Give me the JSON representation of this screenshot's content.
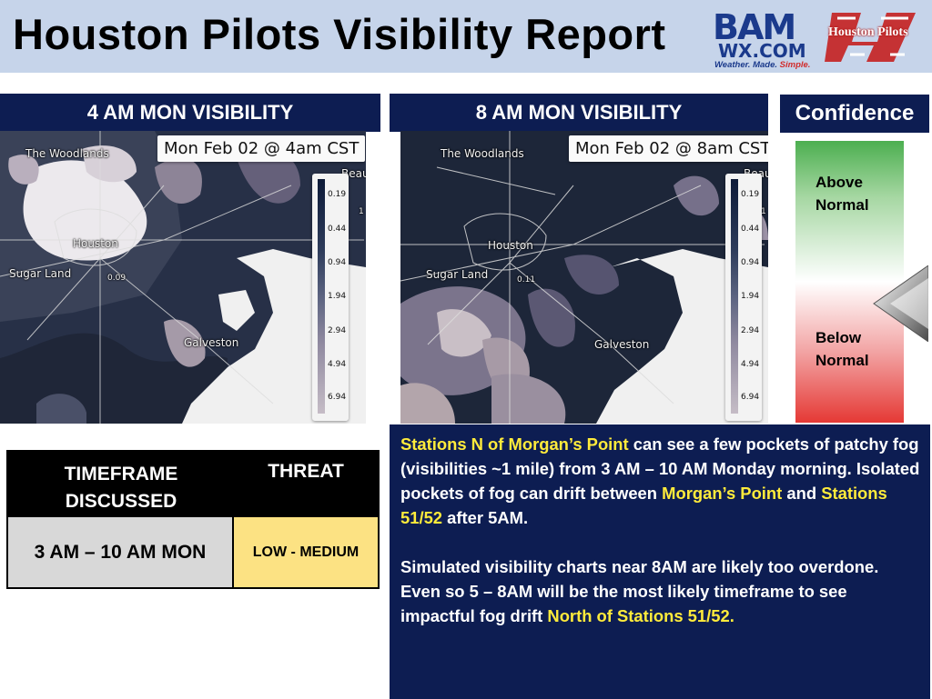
{
  "header": {
    "title": "Houston Pilots Visibility Report",
    "bam_logo": {
      "main": "BAM",
      "sub": "WX.COM",
      "tagline_a": "Weather. Made. ",
      "tagline_b": "Simple."
    },
    "hp_logo": {
      "text": "Houston Pilots"
    }
  },
  "maps": [
    {
      "title": "4 AM MON VISIBILITY",
      "timestamp": "Mon Feb 02 @ 4am CST",
      "labels": {
        "woodlands": "The Woodlands",
        "houston": "Houston",
        "sugarland": "Sugar Land",
        "galveston": "Galveston",
        "value": "0.09",
        "edge_a": "Beaumo",
        "edge_b": "1"
      }
    },
    {
      "title": "8 AM MON VISIBILITY",
      "timestamp": "Mon Feb 02 @ 8am CST",
      "labels": {
        "woodlands": "The Woodlands",
        "houston": "Houston",
        "sugarland": "Sugar Land",
        "galveston": "Galveston",
        "value": "0.11",
        "edge_a": "Beaumo",
        "edge_b": "1"
      }
    }
  ],
  "scale_values": [
    "0.19",
    "0.44",
    "0.94",
    "1.94",
    "2.94",
    "4.94",
    "6.94"
  ],
  "confidence": {
    "title": "Confidence",
    "above": "Above Normal",
    "below": "Below Normal",
    "level": "near normal"
  },
  "threat_table": {
    "col1_header": "TIMEFRAME DISCUSSED",
    "col2_header": "THREAT",
    "timeframe": "3 AM – 10 AM MON",
    "threat": "LOW - MEDIUM"
  },
  "discussion": {
    "p1": [
      {
        "text": "Stations N of Morgan’s Point",
        "hl": true
      },
      {
        "text": " can see a few pockets of patchy fog (visibilities ~1 mile) from 3 AM – 10 AM Monday morning. Isolated pockets of fog can drift between ",
        "hl": false
      },
      {
        "text": "Morgan’s Point",
        "hl": true
      },
      {
        "text": " and ",
        "hl": false
      },
      {
        "text": "Stations 51/52",
        "hl": true
      },
      {
        "text": " after 5AM.",
        "hl": false
      }
    ],
    "p2": [
      {
        "text": "Simulated visibility charts near 8AM are likely too overdone. Even so 5 – 8AM will be the most likely timeframe to see impactful fog drift ",
        "hl": false
      },
      {
        "text": "North of Stations 51/52.",
        "hl": true
      }
    ]
  },
  "colors": {
    "navy": "#0d1d52",
    "highlight": "#ffeb3b",
    "header_bg": "#c6d4ea",
    "threat_low_medium": "#fce283",
    "confidence_high": "#4caf50",
    "confidence_low": "#e53935"
  }
}
